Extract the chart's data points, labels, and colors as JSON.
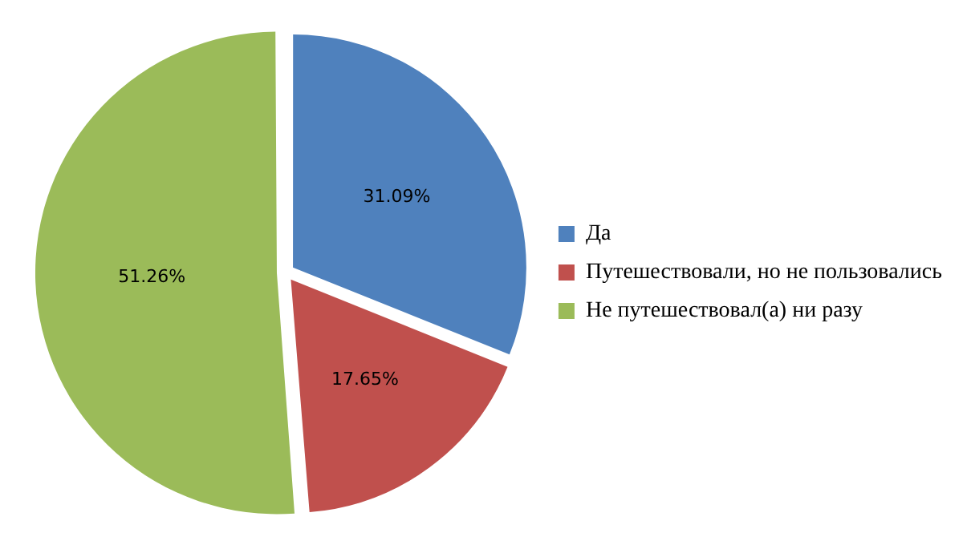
{
  "chart_data": {
    "type": "pie",
    "categories": [
      "Да",
      "Путешествовали, но не пользовались",
      "Не путешествовал(а) ни разу"
    ],
    "values": [
      31.09,
      17.65,
      51.26
    ],
    "colors": [
      "#4f81bd",
      "#c0504d",
      "#9bbb59"
    ],
    "value_labels": [
      "31.09%",
      "17.65%",
      "51.26%"
    ],
    "legend": "right"
  }
}
